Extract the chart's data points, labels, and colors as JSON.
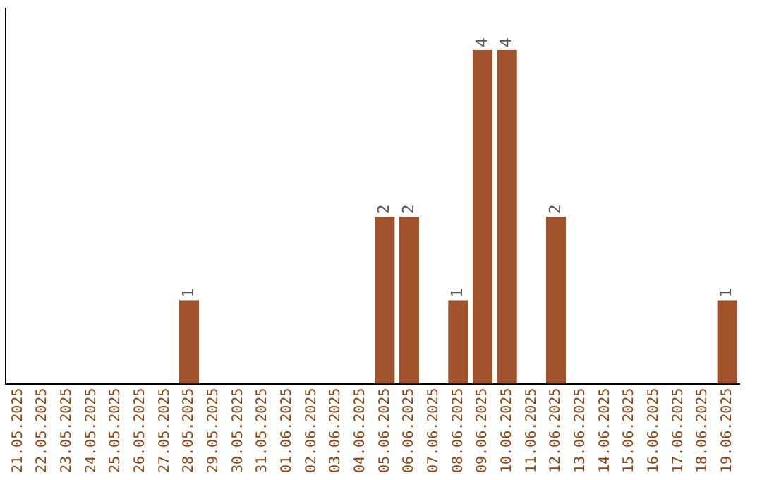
{
  "chart_data": {
    "type": "bar",
    "categories": [
      "21.05.2025",
      "22.05.2025",
      "23.05.2025",
      "24.05.2025",
      "25.05.2025",
      "26.05.2025",
      "27.05.2025",
      "28.05.2025",
      "29.05.2025",
      "30.05.2025",
      "31.05.2025",
      "01.06.2025",
      "02.06.2025",
      "03.06.2025",
      "04.06.2025",
      "05.06.2025",
      "06.06.2025",
      "07.06.2025",
      "08.06.2025",
      "09.06.2025",
      "10.06.2025",
      "11.06.2025",
      "12.06.2025",
      "13.06.2025",
      "14.06.2025",
      "15.06.2025",
      "16.06.2025",
      "17.06.2025",
      "18.06.2025",
      "19.06.2025"
    ],
    "values": [
      0,
      0,
      0,
      0,
      0,
      0,
      0,
      1,
      0,
      0,
      0,
      0,
      0,
      0,
      0,
      2,
      2,
      0,
      1,
      4,
      4,
      0,
      2,
      0,
      0,
      0,
      0,
      0,
      0,
      1
    ],
    "value_labels": [
      null,
      null,
      null,
      null,
      null,
      null,
      null,
      "1",
      null,
      null,
      null,
      null,
      null,
      null,
      null,
      "2",
      "2",
      null,
      "1",
      "4",
      "4",
      null,
      "2",
      null,
      null,
      null,
      null,
      null,
      null,
      "1"
    ],
    "color": "#a0522d",
    "grid": false,
    "legend": false,
    "tick_labels": "x"
  }
}
